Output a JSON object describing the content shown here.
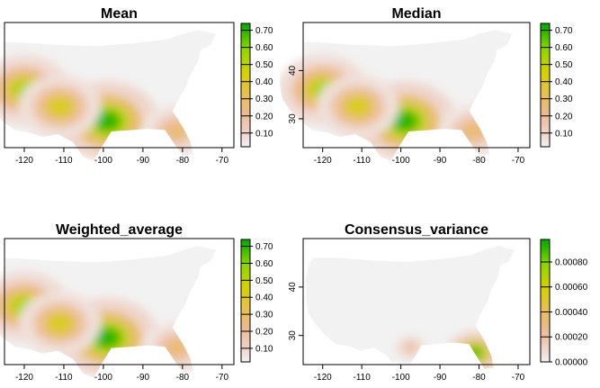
{
  "chart_data": [
    {
      "type": "heatmap",
      "title": "Mean",
      "xlim": [
        -125,
        -67
      ],
      "ylim": [
        24,
        50
      ],
      "x_ticks": [
        -120,
        -110,
        -100,
        -90,
        -80,
        -70
      ],
      "x_tick_labels": [
        "-120",
        "-110",
        "-100",
        "-90",
        "-80",
        "-70"
      ],
      "y_ticks": [],
      "y_tick_labels": [],
      "legend": {
        "range": [
          0.02,
          0.74
        ],
        "ticks": [
          0.1,
          0.2,
          0.3,
          0.4,
          0.5,
          0.6,
          0.7
        ],
        "tick_labels": [
          "0.10",
          "0.20",
          "0.30",
          "0.40",
          "0.50",
          "0.60",
          "0.70"
        ]
      },
      "hotspots": [
        {
          "region": "southern Texas",
          "lon": -99,
          "lat": 29.5,
          "value": 0.7
        },
        {
          "region": "California coast",
          "lon": -120,
          "lat": 36,
          "value": 0.55
        },
        {
          "region": "southern Arizona",
          "lon": -111,
          "lat": 32.5,
          "value": 0.45
        },
        {
          "region": "Florida peninsula",
          "lon": -81.5,
          "lat": 27.5,
          "value": 0.3
        }
      ]
    },
    {
      "type": "heatmap",
      "title": "Median",
      "xlim": [
        -125,
        -67
      ],
      "ylim": [
        24,
        50
      ],
      "x_ticks": [
        -120,
        -110,
        -100,
        -90,
        -80,
        -70
      ],
      "x_tick_labels": [
        "-120",
        "-110",
        "-100",
        "-90",
        "-80",
        "-70"
      ],
      "y_ticks": [
        30,
        40
      ],
      "y_tick_labels": [
        "30",
        "40"
      ],
      "legend": {
        "range": [
          0.02,
          0.74
        ],
        "ticks": [
          0.1,
          0.2,
          0.3,
          0.4,
          0.5,
          0.6,
          0.7
        ],
        "tick_labels": [
          "0.10",
          "0.20",
          "0.30",
          "0.40",
          "0.50",
          "0.60",
          "0.70"
        ]
      },
      "hotspots": [
        {
          "region": "southern Texas",
          "lon": -99,
          "lat": 29.5,
          "value": 0.7
        },
        {
          "region": "California coast",
          "lon": -120,
          "lat": 36,
          "value": 0.55
        },
        {
          "region": "southern Arizona",
          "lon": -111,
          "lat": 32.5,
          "value": 0.45
        },
        {
          "region": "Florida peninsula",
          "lon": -81.5,
          "lat": 27.5,
          "value": 0.3
        }
      ]
    },
    {
      "type": "heatmap",
      "title": "Weighted_average",
      "xlim": [
        -125,
        -67
      ],
      "ylim": [
        24,
        50
      ],
      "x_ticks": [
        -120,
        -110,
        -100,
        -90,
        -80,
        -70
      ],
      "x_tick_labels": [
        "-120",
        "-110",
        "-100",
        "-90",
        "-80",
        "-70"
      ],
      "y_ticks": [],
      "y_tick_labels": [],
      "legend": {
        "range": [
          0.02,
          0.74
        ],
        "ticks": [
          0.1,
          0.2,
          0.3,
          0.4,
          0.5,
          0.6,
          0.7
        ],
        "tick_labels": [
          "0.10",
          "0.20",
          "0.30",
          "0.40",
          "0.50",
          "0.60",
          "0.70"
        ]
      },
      "hotspots": [
        {
          "region": "southern Texas",
          "lon": -99,
          "lat": 29.5,
          "value": 0.7
        },
        {
          "region": "California coast",
          "lon": -120,
          "lat": 36,
          "value": 0.55
        },
        {
          "region": "southern Arizona",
          "lon": -111,
          "lat": 32.5,
          "value": 0.45
        },
        {
          "region": "Florida peninsula",
          "lon": -81.5,
          "lat": 27.5,
          "value": 0.3
        }
      ]
    },
    {
      "type": "heatmap",
      "title": "Consensus_variance",
      "xlim": [
        -125,
        -67
      ],
      "ylim": [
        24,
        50
      ],
      "x_ticks": [
        -120,
        -110,
        -100,
        -90,
        -80,
        -70
      ],
      "x_tick_labels": [
        "-120",
        "-110",
        "-100",
        "-90",
        "-80",
        "-70"
      ],
      "y_ticks": [
        30,
        40
      ],
      "y_tick_labels": [
        "30",
        "40"
      ],
      "legend": {
        "range": [
          0,
          0.00098
        ],
        "ticks": [
          0,
          0.0002,
          0.0004,
          0.0006,
          0.0008
        ],
        "tick_labels": [
          "0.00000",
          "0.00020",
          "0.00040",
          "0.00060",
          "0.00080"
        ]
      },
      "hotspots": [
        {
          "region": "south Florida",
          "lon": -81,
          "lat": 26.5,
          "value": 0.0009
        },
        {
          "region": "Texas Gulf coast",
          "lon": -97.5,
          "lat": 27.5,
          "value": 0.0003
        }
      ]
    }
  ],
  "colors": {
    "background_na": "#ffffff",
    "land_low": "#f2f2f2",
    "ramp": [
      "#f2f2f2",
      "#efd1c6",
      "#ebb98f",
      "#e6c14a",
      "#d2d200",
      "#8bd400",
      "#00a600"
    ]
  }
}
